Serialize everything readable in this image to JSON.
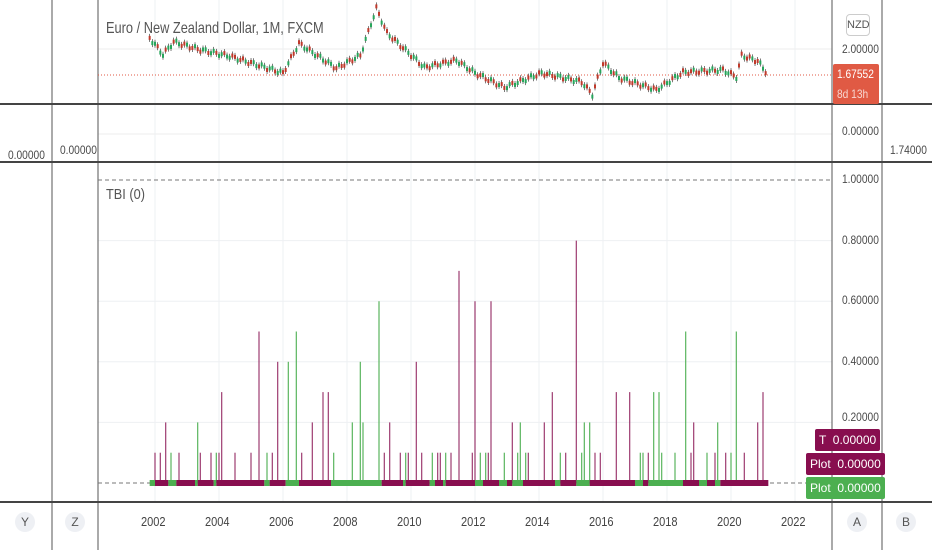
{
  "header": {
    "title": "Euro / New Zealand Dollar, 1M, FXCM",
    "currency": "NZD"
  },
  "price_axis": {
    "level_label": "2.00000",
    "last_price": "1.67552",
    "countdown": "8d 13h",
    "last_price_color": "#e05a44"
  },
  "middle_pane": {
    "right_label": "0.00000",
    "left_inner_label": "0.00000",
    "left_outer_label": "0.00000",
    "far_right_label": "1.74000"
  },
  "indicator": {
    "name": "TBI (0)",
    "y_labels": [
      "1.00000",
      "0.80000",
      "0.60000",
      "0.40000",
      "0.20000"
    ]
  },
  "legend_badges": [
    {
      "name": "T",
      "value": "0.00000",
      "color": "#880e4f"
    },
    {
      "name": "Plot",
      "value": "0.00000",
      "color": "#880e4f"
    },
    {
      "name": "Plot",
      "value": "0.00000",
      "color": "#4caf50"
    }
  ],
  "x_axis": {
    "ticks": [
      "2002",
      "2004",
      "2006",
      "2008",
      "2010",
      "2012",
      "2014",
      "2016",
      "2018",
      "2020",
      "2022"
    ]
  },
  "scale_buttons": {
    "left": [
      "Y",
      "Z"
    ],
    "right": [
      "A",
      "B"
    ]
  },
  "colors": {
    "maroon": "#880e4f",
    "green": "#4caf50"
  },
  "chart_data": [
    {
      "type": "line",
      "title": "Euro / New Zealand Dollar, 1M, FXCM",
      "ylim": [
        1.35,
        2.55
      ],
      "x": [
        "2001-11",
        "2002-04",
        "2002-08",
        "2003-06",
        "2004-05",
        "2006-01",
        "2006-07",
        "2007-09",
        "2008-06",
        "2008-12",
        "2009-04",
        "2010-06",
        "2011-06",
        "2012-01",
        "2012-12",
        "2014-02",
        "2015-05",
        "2015-09",
        "2016-01",
        "2016-07",
        "2017-09",
        "2018-07",
        "2019-10",
        "2020-03",
        "2020-05",
        "2020-11",
        "2021-03"
      ],
      "y": [
        2.14,
        1.93,
        2.09,
        1.99,
        1.91,
        1.7,
        2.07,
        1.76,
        1.92,
        2.51,
        2.2,
        1.77,
        1.86,
        1.7,
        1.52,
        1.7,
        1.59,
        1.43,
        1.83,
        1.64,
        1.49,
        1.71,
        1.74,
        1.65,
        1.92,
        1.85,
        1.676
      ]
    },
    {
      "type": "bar",
      "title": "TBI (0)",
      "ylim": [
        0,
        1
      ],
      "grid": true,
      "bars": [
        [
          "2002-01",
          0.1,
          "maroon"
        ],
        [
          "2002-03",
          0.1,
          "maroon"
        ],
        [
          "2002-05",
          0.2,
          "maroon"
        ],
        [
          "2002-07",
          0.1,
          "green"
        ],
        [
          "2002-10",
          0.1,
          "maroon"
        ],
        [
          "2003-05",
          0.2,
          "green"
        ],
        [
          "2003-06",
          0.1,
          "maroon"
        ],
        [
          "2003-10",
          0.1,
          "maroon"
        ],
        [
          "2003-12",
          0.1,
          "green"
        ],
        [
          "2004-01",
          0.1,
          "maroon"
        ],
        [
          "2004-02",
          0.3,
          "maroon"
        ],
        [
          "2004-07",
          0.1,
          "maroon"
        ],
        [
          "2005-01",
          0.1,
          "maroon"
        ],
        [
          "2005-04",
          0.5,
          "maroon"
        ],
        [
          "2005-07",
          0.1,
          "green"
        ],
        [
          "2005-09",
          0.1,
          "maroon"
        ],
        [
          "2005-11",
          0.4,
          "maroon"
        ],
        [
          "2006-03",
          0.4,
          "green"
        ],
        [
          "2006-06",
          0.5,
          "green"
        ],
        [
          "2006-08",
          0.1,
          "maroon"
        ],
        [
          "2006-12",
          0.2,
          "maroon"
        ],
        [
          "2007-04",
          0.3,
          "maroon"
        ],
        [
          "2007-06",
          0.3,
          "maroon"
        ],
        [
          "2007-08",
          0.1,
          "green"
        ],
        [
          "2008-03",
          0.2,
          "green"
        ],
        [
          "2008-06",
          0.4,
          "green"
        ],
        [
          "2008-07",
          0.2,
          "green"
        ],
        [
          "2009-01",
          0.6,
          "green"
        ],
        [
          "2009-03",
          0.1,
          "maroon"
        ],
        [
          "2009-05",
          0.2,
          "maroon"
        ],
        [
          "2009-09",
          0.1,
          "maroon"
        ],
        [
          "2009-11",
          0.1,
          "green"
        ],
        [
          "2009-12",
          0.1,
          "maroon"
        ],
        [
          "2010-03",
          0.4,
          "maroon"
        ],
        [
          "2010-05",
          0.1,
          "maroon"
        ],
        [
          "2010-09",
          0.1,
          "green"
        ],
        [
          "2010-11",
          0.1,
          "maroon"
        ],
        [
          "2010-12",
          0.1,
          "maroon"
        ],
        [
          "2011-02",
          0.1,
          "green"
        ],
        [
          "2011-04",
          0.1,
          "maroon"
        ],
        [
          "2011-07",
          0.7,
          "maroon"
        ],
        [
          "2011-12",
          0.1,
          "maroon"
        ],
        [
          "2012-01",
          0.6,
          "maroon"
        ],
        [
          "2012-03",
          0.1,
          "green"
        ],
        [
          "2012-05",
          0.1,
          "green"
        ],
        [
          "2012-06",
          0.1,
          "maroon"
        ],
        [
          "2012-07",
          0.6,
          "maroon"
        ],
        [
          "2012-12",
          0.1,
          "green"
        ],
        [
          "2013-03",
          0.2,
          "maroon"
        ],
        [
          "2013-05",
          0.1,
          "green"
        ],
        [
          "2013-06",
          0.2,
          "green"
        ],
        [
          "2013-08",
          0.1,
          "green"
        ],
        [
          "2013-09",
          0.1,
          "maroon"
        ],
        [
          "2014-03",
          0.2,
          "maroon"
        ],
        [
          "2014-06",
          0.3,
          "maroon"
        ],
        [
          "2014-09",
          0.1,
          "green"
        ],
        [
          "2014-11",
          0.1,
          "maroon"
        ],
        [
          "2015-03",
          0.8,
          "maroon"
        ],
        [
          "2015-05",
          0.1,
          "green"
        ],
        [
          "2015-06",
          0.2,
          "green"
        ],
        [
          "2015-08",
          0.2,
          "green"
        ],
        [
          "2015-10",
          0.1,
          "maroon"
        ],
        [
          "2015-12",
          0.1,
          "maroon"
        ],
        [
          "2016-06",
          0.3,
          "maroon"
        ],
        [
          "2016-11",
          0.3,
          "maroon"
        ],
        [
          "2017-03",
          0.1,
          "green"
        ],
        [
          "2017-04",
          0.1,
          "green"
        ],
        [
          "2017-06",
          0.1,
          "maroon"
        ],
        [
          "2017-08",
          0.3,
          "green"
        ],
        [
          "2017-10",
          0.3,
          "green"
        ],
        [
          "2017-11",
          0.1,
          "green"
        ],
        [
          "2018-04",
          0.1,
          "green"
        ],
        [
          "2018-08",
          0.5,
          "green"
        ],
        [
          "2018-10",
          0.1,
          "maroon"
        ],
        [
          "2018-11",
          0.2,
          "maroon"
        ],
        [
          "2019-04",
          0.1,
          "green"
        ],
        [
          "2019-07",
          0.1,
          "maroon"
        ],
        [
          "2019-08",
          0.2,
          "green"
        ],
        [
          "2019-11",
          0.1,
          "maroon"
        ],
        [
          "2020-01",
          0.1,
          "green"
        ],
        [
          "2020-03",
          0.5,
          "green"
        ],
        [
          "2020-06",
          0.1,
          "maroon"
        ],
        [
          "2020-11",
          0.2,
          "maroon"
        ],
        [
          "2021-01",
          0.3,
          "maroon"
        ]
      ],
      "state_segments": [
        [
          "2001-11",
          "2002-01",
          "green"
        ],
        [
          "2002-01",
          "2002-06",
          "maroon"
        ],
        [
          "2002-06",
          "2002-09",
          "green"
        ],
        [
          "2002-09",
          "2003-04",
          "maroon"
        ],
        [
          "2003-04",
          "2003-05",
          "green"
        ],
        [
          "2003-05",
          "2003-11",
          "maroon"
        ],
        [
          "2003-11",
          "2003-12",
          "green"
        ],
        [
          "2003-12",
          "2005-06",
          "maroon"
        ],
        [
          "2005-06",
          "2005-08",
          "green"
        ],
        [
          "2005-08",
          "2006-02",
          "maroon"
        ],
        [
          "2006-02",
          "2006-07",
          "green"
        ],
        [
          "2006-07",
          "2007-07",
          "maroon"
        ],
        [
          "2007-07",
          "2009-02",
          "green"
        ],
        [
          "2009-02",
          "2009-10",
          "maroon"
        ],
        [
          "2009-10",
          "2009-11",
          "green"
        ],
        [
          "2009-11",
          "2010-08",
          "maroon"
        ],
        [
          "2010-08",
          "2010-10",
          "green"
        ],
        [
          "2010-10",
          "2011-01",
          "maroon"
        ],
        [
          "2011-01",
          "2011-02",
          "green"
        ],
        [
          "2011-02",
          "2012-01",
          "maroon"
        ],
        [
          "2012-01",
          "2012-04",
          "green"
        ],
        [
          "2012-04",
          "2012-10",
          "maroon"
        ],
        [
          "2012-10",
          "2013-01",
          "green"
        ],
        [
          "2013-01",
          "2013-03",
          "maroon"
        ],
        [
          "2013-03",
          "2013-07",
          "green"
        ],
        [
          "2013-07",
          "2014-07",
          "maroon"
        ],
        [
          "2014-07",
          "2014-09",
          "green"
        ],
        [
          "2014-09",
          "2015-03",
          "maroon"
        ],
        [
          "2015-03",
          "2015-08",
          "green"
        ],
        [
          "2015-08",
          "2017-01",
          "maroon"
        ],
        [
          "2017-01",
          "2017-04",
          "green"
        ],
        [
          "2017-04",
          "2017-06",
          "maroon"
        ],
        [
          "2017-06",
          "2018-07",
          "green"
        ],
        [
          "2018-07",
          "2019-01",
          "maroon"
        ],
        [
          "2019-01",
          "2019-04",
          "green"
        ],
        [
          "2019-04",
          "2019-07",
          "maroon"
        ],
        [
          "2019-07",
          "2019-09",
          "green"
        ],
        [
          "2019-09",
          "2020-04",
          "maroon"
        ],
        [
          "2020-04",
          "2020-04",
          "green"
        ],
        [
          "2020-04",
          "2021-03",
          "maroon"
        ]
      ]
    }
  ]
}
